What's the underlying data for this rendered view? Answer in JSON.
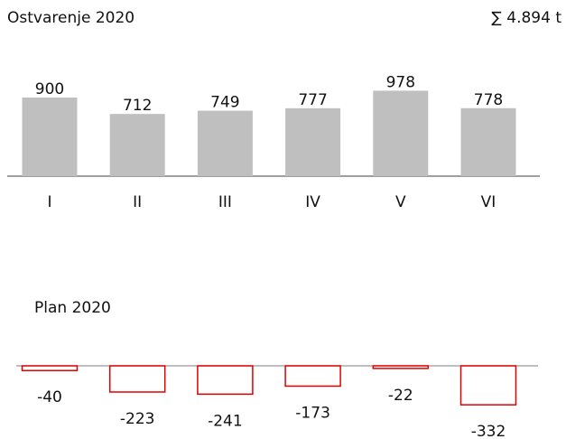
{
  "chart_data": [
    {
      "type": "bar",
      "title": "Ostvarenje 2020",
      "annotation": "∑ 4.894 t",
      "categories": [
        "I",
        "II",
        "III",
        "IV",
        "V",
        "VI"
      ],
      "values": [
        900,
        712,
        749,
        777,
        978,
        778
      ],
      "color": "#bfbfbf",
      "ylim": [
        0,
        1000
      ]
    },
    {
      "type": "bar",
      "title": "Plan 2020",
      "values": [
        -40,
        -223,
        -241,
        -173,
        -22,
        -332
      ],
      "color": "#e00000",
      "fill": "#ffffff",
      "ylim": [
        -400,
        0
      ]
    }
  ]
}
